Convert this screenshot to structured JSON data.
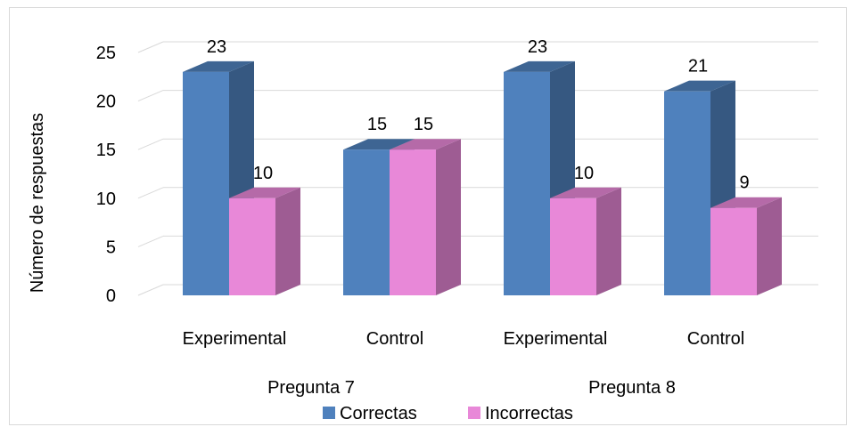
{
  "chart_data": {
    "type": "bar",
    "style": "3d-clustered-column",
    "groups": [
      "Pregunta 7",
      "Pregunta 8"
    ],
    "categories": [
      "Experimental",
      "Control",
      "Experimental",
      "Control"
    ],
    "category_group": [
      0,
      0,
      1,
      1
    ],
    "series": [
      {
        "name": "Correctas",
        "values": [
          23,
          15,
          23,
          21
        ],
        "color": "#4f81bd"
      },
      {
        "name": "Incorrectas",
        "values": [
          10,
          15,
          10,
          9
        ],
        "color": "#e888d8"
      }
    ],
    "ylabel": "Número de respuestas",
    "xlabel": "",
    "ylim": [
      0,
      25
    ],
    "yticks": [
      0,
      5,
      10,
      15,
      20,
      25
    ],
    "grid": true,
    "data_labels": true,
    "legend_position": "bottom"
  }
}
